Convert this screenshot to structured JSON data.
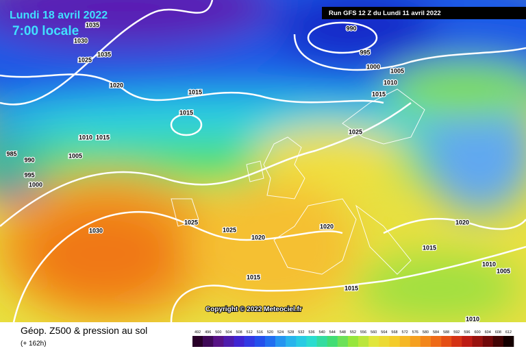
{
  "header": {
    "date": "Lundi 18 avril 2022",
    "time": "7:00 locale",
    "run": "Run GFS 12 Z du Lundi 11 avril 2022"
  },
  "copyright": "Copyright © 2022 Meteociel.fr",
  "footer": {
    "title": "Géop. Z500 & pression au sol",
    "lead": "(+ 162h)"
  },
  "colorbar": {
    "labels": [
      "492",
      "496",
      "500",
      "504",
      "508",
      "512",
      "516",
      "520",
      "524",
      "528",
      "532",
      "536",
      "540",
      "544",
      "548",
      "552",
      "556",
      "560",
      "564",
      "568",
      "572",
      "576",
      "580",
      "584",
      "588",
      "592",
      "596",
      "600",
      "604",
      "608",
      "612"
    ]
  },
  "isobar_labels": [
    "1035",
    "1030",
    "1035",
    "1025",
    "1020",
    "1015",
    "1015",
    "1010",
    "1015",
    "985",
    "990",
    "995",
    "1000",
    "1005",
    "990",
    "995",
    "1000",
    "1005",
    "1010",
    "1015",
    "1025",
    "1030",
    "1025",
    "1025",
    "1020",
    "1020",
    "1015",
    "1015",
    "1020",
    "1015",
    "1010",
    "1005",
    "1010"
  ]
}
